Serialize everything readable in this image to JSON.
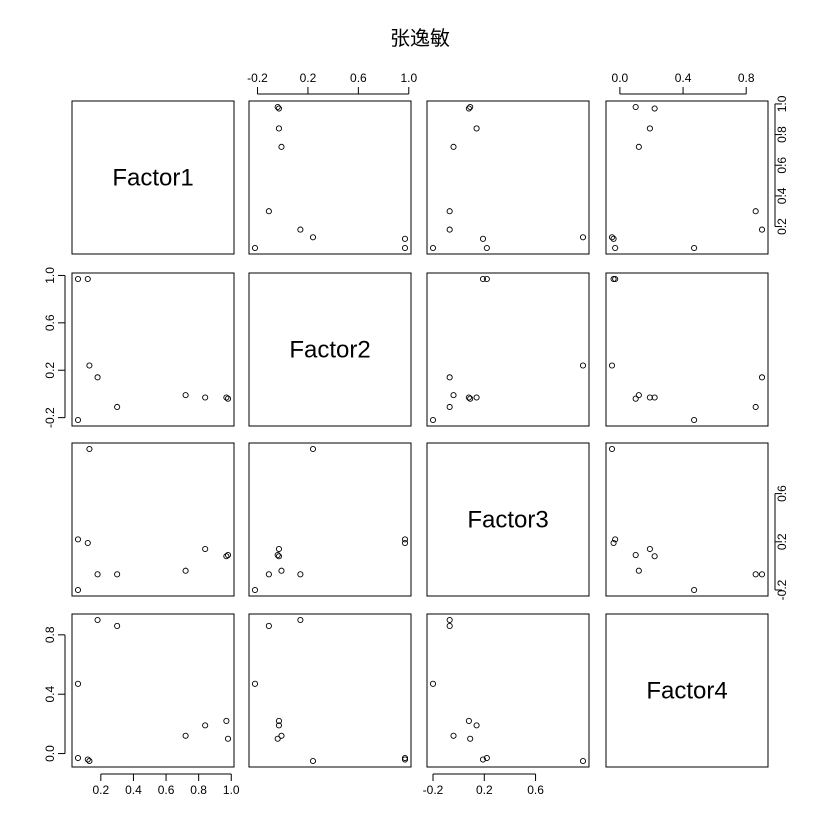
{
  "chart_data": {
    "type": "scatter",
    "kind": "scatterplot-matrix",
    "title": "张逸敏",
    "variables": [
      "Factor1",
      "Factor2",
      "Factor3",
      "Factor4"
    ],
    "observations": [
      {
        "Factor1": 0.97,
        "Factor2": -0.03,
        "Factor3": 0.08,
        "Factor4": 0.22
      },
      {
        "Factor1": 0.98,
        "Factor2": -0.04,
        "Factor3": 0.09,
        "Factor4": 0.1
      },
      {
        "Factor1": 0.84,
        "Factor2": -0.03,
        "Factor3": 0.14,
        "Factor4": 0.19
      },
      {
        "Factor1": 0.72,
        "Factor2": -0.01,
        "Factor3": -0.04,
        "Factor4": 0.12
      },
      {
        "Factor1": 0.3,
        "Factor2": -0.11,
        "Factor3": -0.07,
        "Factor4": 0.86
      },
      {
        "Factor1": 0.18,
        "Factor2": 0.14,
        "Factor3": -0.07,
        "Factor4": 0.9
      },
      {
        "Factor1": 0.13,
        "Factor2": 0.24,
        "Factor3": 0.97,
        "Factor4": -0.05
      },
      {
        "Factor1": 0.12,
        "Factor2": 0.97,
        "Factor3": 0.19,
        "Factor4": -0.04
      },
      {
        "Factor1": 0.06,
        "Factor2": 0.97,
        "Factor3": 0.22,
        "Factor4": -0.03
      },
      {
        "Factor1": 0.06,
        "Factor2": -0.22,
        "Factor3": -0.2,
        "Factor4": 0.47
      }
    ],
    "ranges": {
      "Factor1": [
        0.06,
        0.98
      ],
      "Factor2": [
        -0.22,
        0.97
      ],
      "Factor3": [
        -0.2,
        0.97
      ],
      "Factor4": [
        -0.05,
        0.9
      ]
    },
    "ticks": {
      "Factor1": [
        0.2,
        0.4,
        0.6,
        0.8,
        1.0
      ],
      "Factor2": [
        -0.2,
        0.2,
        0.6,
        1.0
      ],
      "Factor3": [
        -0.2,
        0.2,
        0.6
      ],
      "Factor4": [
        0.0,
        0.4,
        0.8
      ]
    },
    "tick_labels": {
      "Factor1": [
        "0.2",
        "0.4",
        "0.6",
        "0.8",
        "1.0"
      ],
      "Factor2": [
        "-0.2",
        "0.2",
        "0.6",
        "1.0"
      ],
      "Factor3": [
        "-0.2",
        "0.2",
        "0.6"
      ],
      "Factor4": [
        "0.0",
        "0.4",
        "0.8"
      ]
    },
    "axes": {
      "top": [
        {
          "panel_col": 1,
          "variable": "Factor2"
        },
        {
          "panel_col": 3,
          "variable": "Factor4"
        }
      ],
      "right": [
        {
          "panel_row": 0,
          "variable": "Factor1"
        },
        {
          "panel_row": 2,
          "variable": "Factor3"
        }
      ],
      "bottom": [
        {
          "panel_col": 0,
          "variable": "Factor1"
        },
        {
          "panel_col": 2,
          "variable": "Factor3"
        }
      ],
      "left": [
        {
          "panel_row": 1,
          "variable": "Factor2"
        },
        {
          "panel_row": 3,
          "variable": "Factor4"
        }
      ]
    },
    "grid": false,
    "legend": "none"
  }
}
